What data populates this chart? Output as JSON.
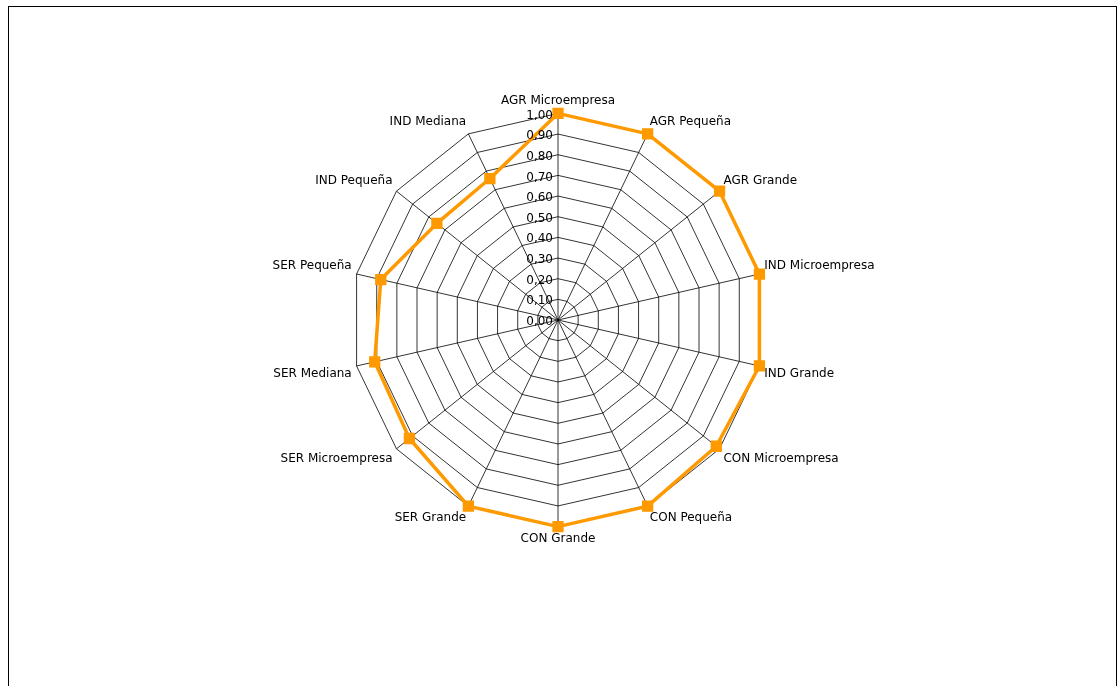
{
  "chart_data": {
    "type": "radar",
    "categories": [
      "AGR Microempresa",
      "AGR Pequeña",
      "AGR Grande",
      "IND Microempresa",
      "IND Grande",
      "CON Microempresa",
      "CON Pequeña",
      "CON Grande",
      "SER Grande",
      "SER Microempresa",
      "SER Mediana",
      "SER Pequeña",
      "IND Pequeña",
      "IND Mediana"
    ],
    "series": [
      {
        "color": "#ff9900",
        "values": [
          1.0,
          1.0,
          1.0,
          1.0,
          1.0,
          0.98,
          1.0,
          1.0,
          1.0,
          0.92,
          0.91,
          0.88,
          0.75,
          0.76
        ]
      }
    ],
    "ylim": [
      0,
      1
    ],
    "yticks": [
      {
        "value": 0,
        "label": "0,00"
      },
      {
        "value": 0.1,
        "label": "0,10"
      },
      {
        "value": 0.2,
        "label": "0,20"
      },
      {
        "value": 0.3,
        "label": "0,30"
      },
      {
        "value": 0.4,
        "label": "0,40"
      },
      {
        "value": 0.5,
        "label": "0,50"
      },
      {
        "value": 0.6,
        "label": "0,60"
      },
      {
        "value": 0.7,
        "label": "0,70"
      },
      {
        "value": 0.8,
        "label": "0,80"
      },
      {
        "value": 0.9,
        "label": "0,90"
      },
      {
        "value": 1,
        "label": "1,00"
      }
    ],
    "marker": "square",
    "grid": true,
    "legend": false
  }
}
